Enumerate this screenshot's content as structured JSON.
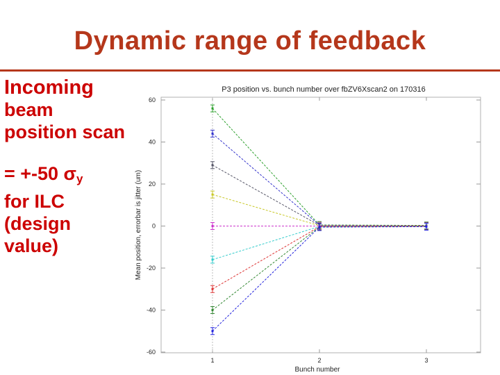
{
  "slide": {
    "title": "Dynamic range of feedback",
    "accent_color": "#b5371b",
    "bullet_color": "#cc0000"
  },
  "bullets": {
    "b1_line1": "Incoming",
    "b1_rest": "beam position scan",
    "b2_text": "= +-50 σ",
    "b2_sub": "y",
    "b2_rest": "for ILC (design value)"
  },
  "chart_data": {
    "type": "line",
    "title": "P3 position vs. bunch number over fbZV6Xscan2 on 170316",
    "xlabel": "Bunch number",
    "ylabel": "Mean position, errorbar is jitter (um)",
    "x": [
      1,
      2,
      3
    ],
    "xlim": [
      1,
      3
    ],
    "ylim": [
      -60,
      60
    ],
    "yticks": [
      60,
      40,
      20,
      0,
      -20,
      -40,
      -60
    ],
    "xticks": [
      1,
      2,
      3
    ],
    "grid": false,
    "legend": "none",
    "series": [
      {
        "color": "#2ca02c",
        "values": [
          56,
          0.5,
          0.3
        ]
      },
      {
        "color": "#3333cc",
        "values": [
          44,
          0.4,
          0.2
        ]
      },
      {
        "color": "#555566",
        "values": [
          29,
          0.3,
          0.1
        ]
      },
      {
        "color": "#c8c828",
        "values": [
          15,
          0.2,
          0.1
        ]
      },
      {
        "color": "#cc33cc",
        "values": [
          0,
          0.0,
          0.0
        ]
      },
      {
        "color": "#33cccc",
        "values": [
          -16,
          -0.2,
          -0.1
        ]
      },
      {
        "color": "#dd3333",
        "values": [
          -30,
          -0.3,
          -0.1
        ]
      },
      {
        "color": "#338833",
        "values": [
          -40,
          -0.4,
          -0.2
        ]
      },
      {
        "color": "#2222dd",
        "values": [
          -50,
          -0.5,
          -0.3
        ]
      }
    ]
  }
}
